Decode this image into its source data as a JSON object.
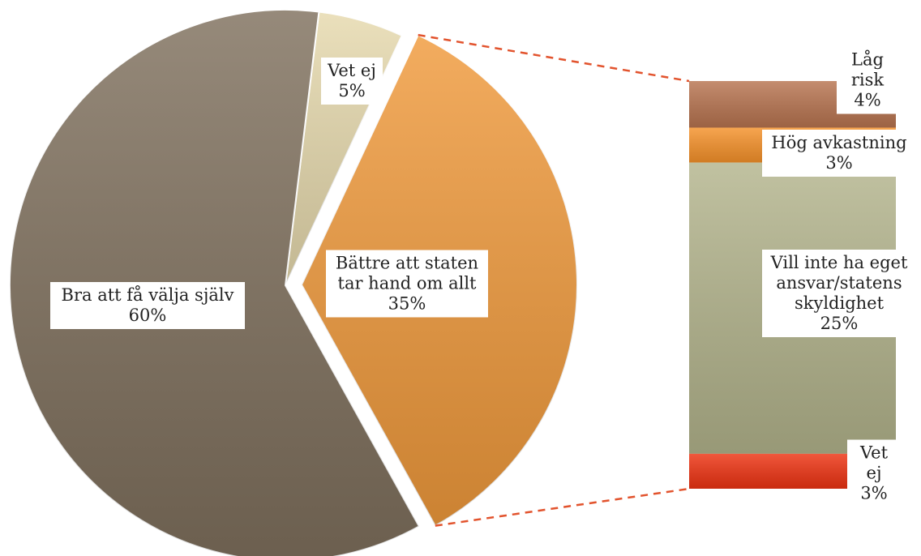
{
  "chart_data": {
    "type": "pie-of-bar",
    "pie": {
      "labels": [
        "Vet ej",
        "Bättre att staten tar hand om allt",
        "Bra att få välja själv"
      ],
      "values": [
        5,
        35,
        60
      ],
      "value_labels": [
        "5%",
        "35%",
        "60%"
      ],
      "colors": [
        "#e6d9ad",
        "#f09a3c",
        "#7f705d"
      ]
    },
    "bar": {
      "labels": [
        "Låg risk",
        "Hög avkastning",
        "Vill inte ha eget ansvar/statens skyldighet",
        "Vet ej"
      ],
      "values": [
        4,
        3,
        25,
        3
      ],
      "value_labels": [
        "4%",
        "3%",
        "25%",
        "3%"
      ],
      "colors": [
        "#b87450",
        "#f6922a",
        "#b3b48c",
        "#ee3312"
      ]
    }
  }
}
